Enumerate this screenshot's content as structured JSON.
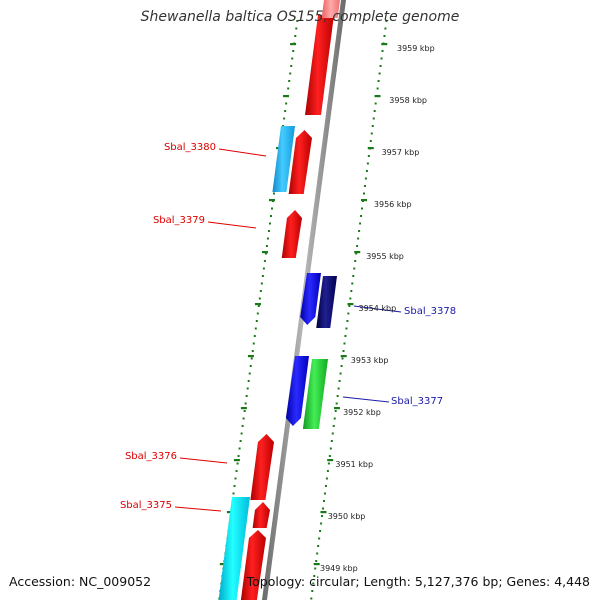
{
  "title": "Shewanella baltica OS155, complete genome",
  "footer": {
    "accession": "Accession: NC_009052",
    "summary": "Topology: circular; Length: 5,127,376 bp; Genes: 4,448"
  },
  "colors": {
    "backbone": "#8c8c8c",
    "ticks": "#1a7a1a",
    "label_red": "#dd0000",
    "label_blue": "#1a1aa8",
    "gene_red": "#ee0000",
    "gene_cyan_light": "#33bbee",
    "gene_cyan": "#00dddd",
    "gene_blue": "#1111ee",
    "gene_navy": "#101070",
    "gene_green": "#22bb33"
  },
  "ruler": {
    "unit": "kbp",
    "labels": [
      "3959 kbp",
      "3958 kbp",
      "3957 kbp",
      "3956 kbp",
      "3955 kbp",
      "3954 kbp",
      "3953 kbp",
      "3952 kbp",
      "3951 kbp",
      "3950 kbp",
      "3949 kbp"
    ]
  },
  "gene_labels": [
    {
      "text": "Sbal_3380",
      "color": "red"
    },
    {
      "text": "Sbal_3379",
      "color": "red"
    },
    {
      "text": "Sbal_3378",
      "color": "blue"
    },
    {
      "text": "Sbal_3377",
      "color": "blue"
    },
    {
      "text": "Sbal_3376",
      "color": "red"
    },
    {
      "text": "Sbal_3375",
      "color": "red"
    }
  ]
}
